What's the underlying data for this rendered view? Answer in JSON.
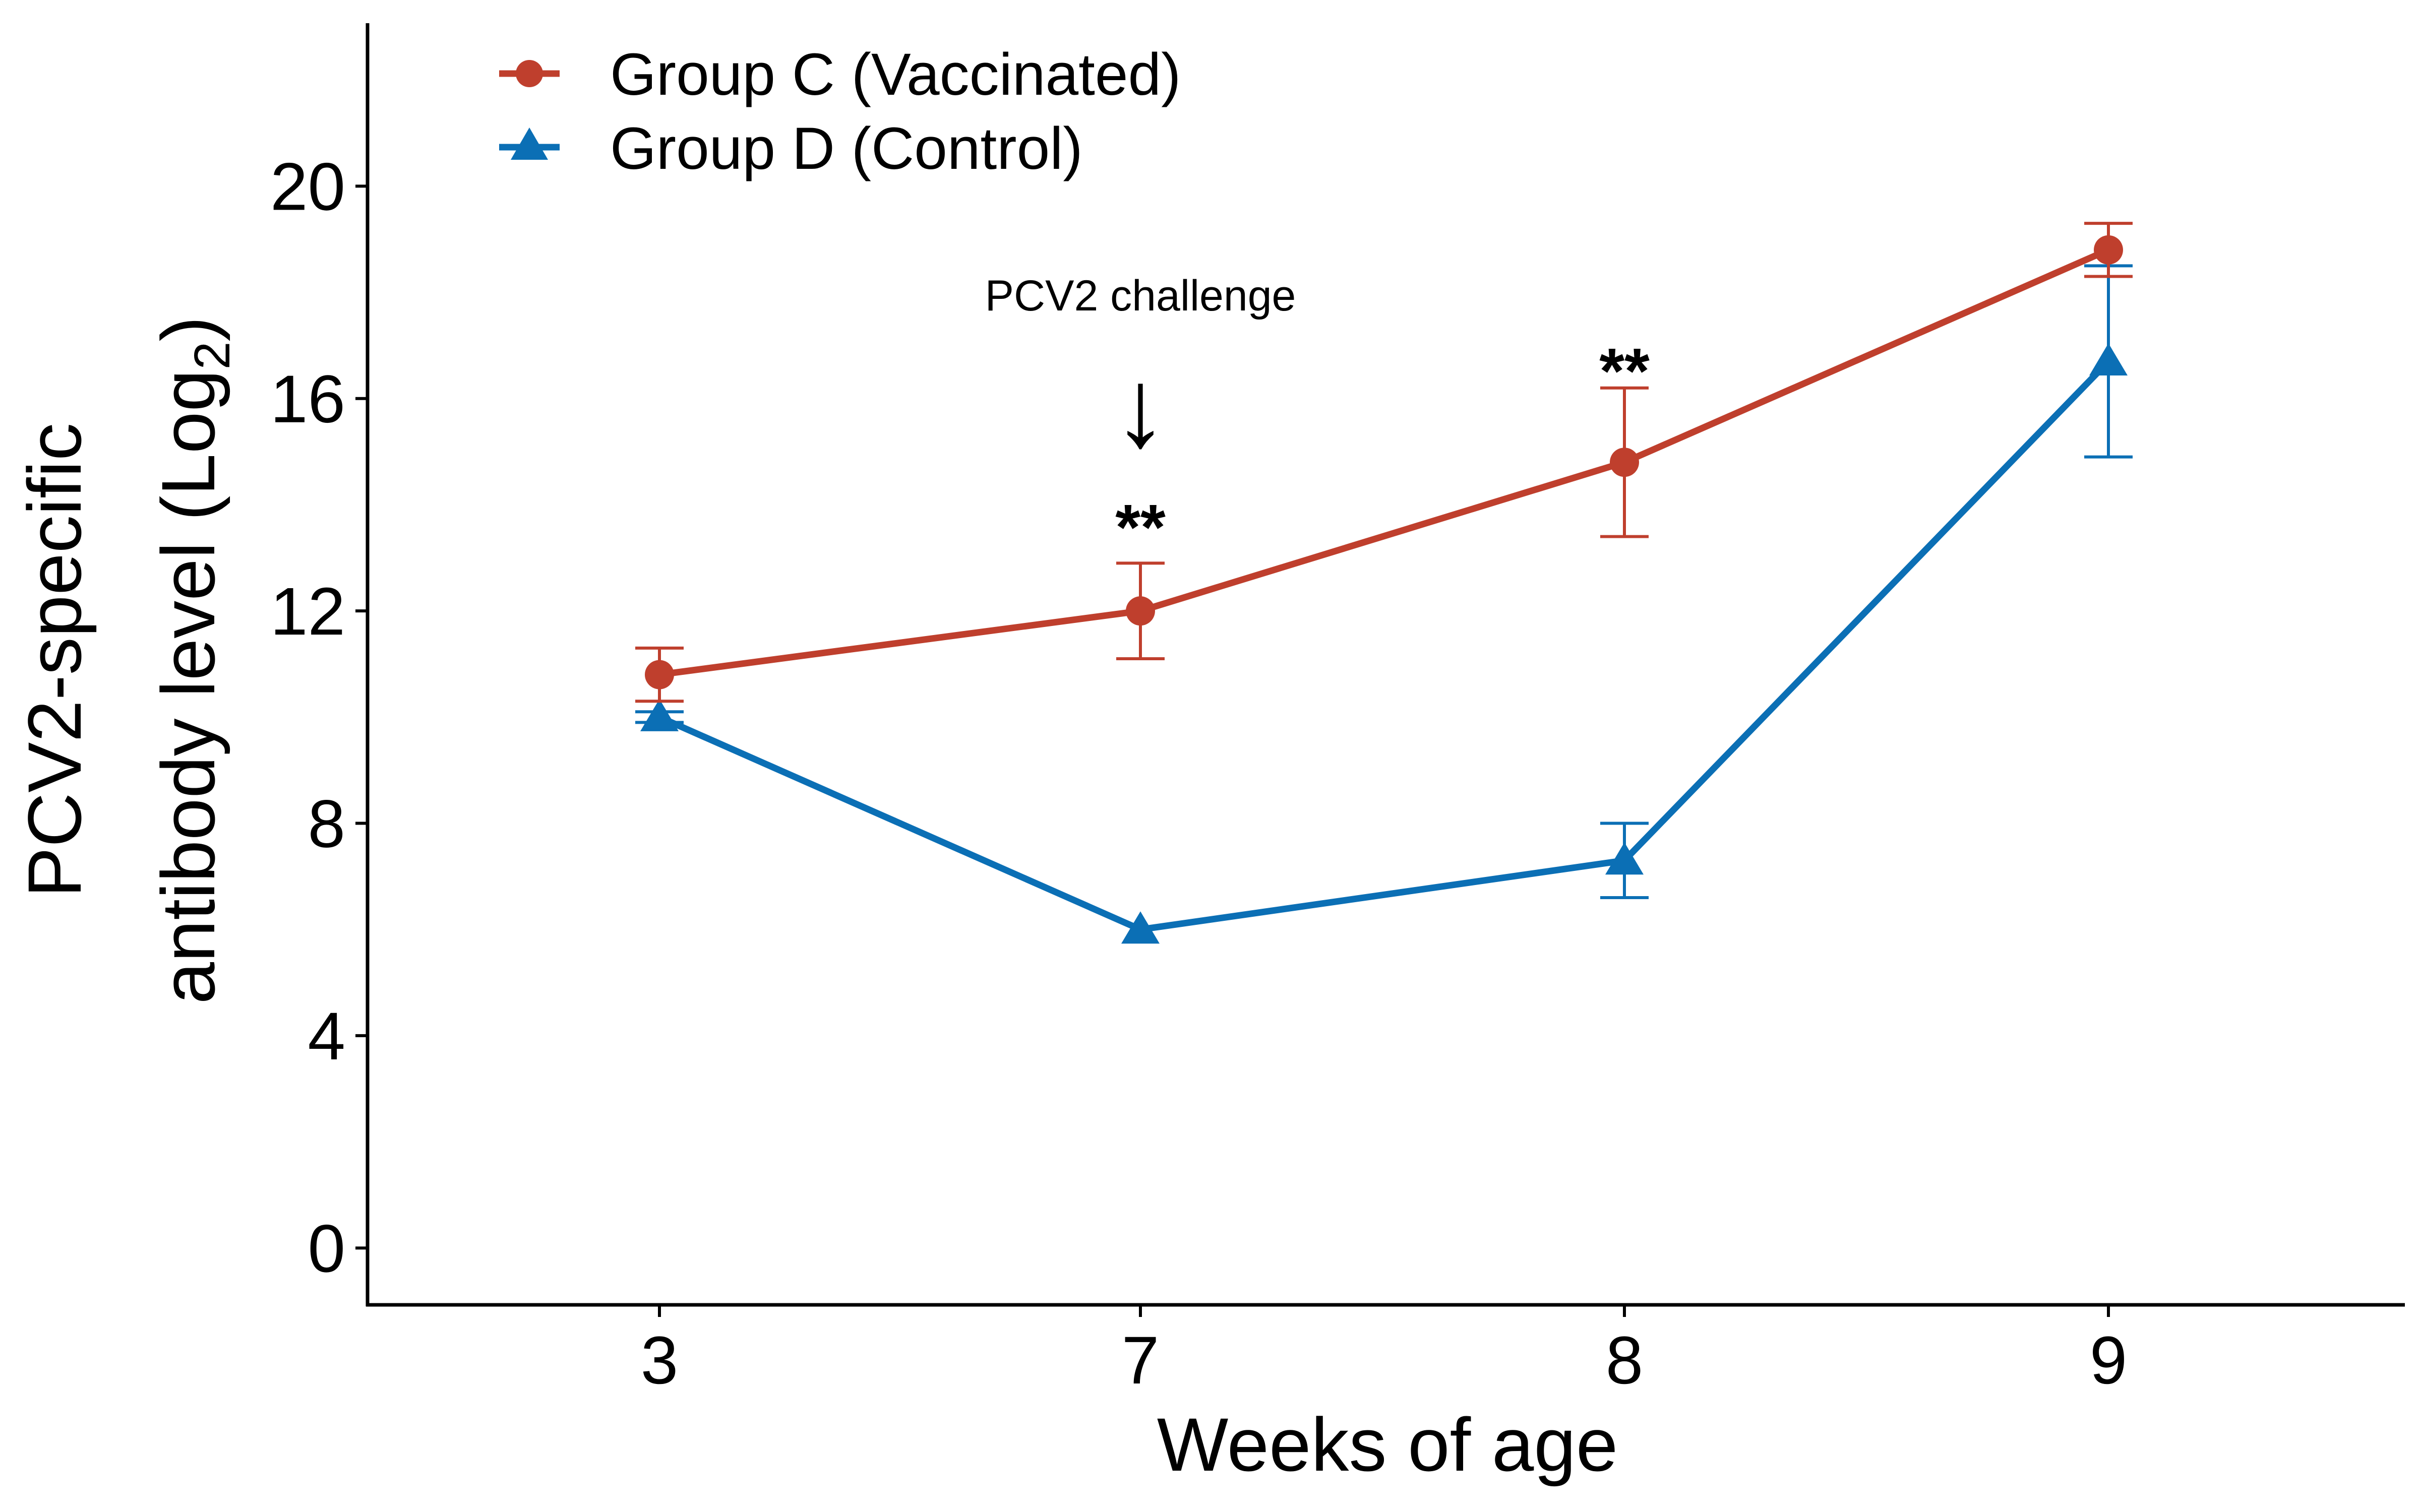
{
  "chart_data": {
    "type": "line",
    "xlabel": "Weeks of age",
    "ylabel_line1": "PCV2-specific",
    "ylabel_line2_main": "antibody level",
    "ylabel_line2_open": "(",
    "ylabel_line2_log": "Log",
    "ylabel_line2_sub": "2",
    "ylabel_line2_close": ")",
    "categories": [
      "3",
      "7",
      "8",
      "9"
    ],
    "yticks": [
      "0",
      "4",
      "8",
      "12",
      "16",
      "20"
    ],
    "ylim": [
      -1.07,
      23.07
    ],
    "series": [
      {
        "name": "Group C (Vaccinated)",
        "marker": "circle",
        "color": "#bf3f2d",
        "values": [
          10.8,
          12.0,
          14.8,
          18.8
        ],
        "err_low": [
          10.3,
          11.1,
          13.4,
          18.3
        ],
        "err_high": [
          11.3,
          12.9,
          16.2,
          19.3
        ]
      },
      {
        "name": "Group D (Control)",
        "marker": "triangle",
        "color": "#0b6fb5",
        "values": [
          10.0,
          6.0,
          7.3,
          16.7
        ],
        "err_low": [
          9.9,
          6.0,
          6.6,
          14.9
        ],
        "err_high": [
          10.1,
          6.0,
          8.0,
          18.5
        ]
      }
    ],
    "annotations": {
      "challenge_label": "PCV2 challenge",
      "arrow": "↓",
      "sig_week7": "**",
      "sig_week8": "**"
    },
    "legend_position": "top-left"
  }
}
